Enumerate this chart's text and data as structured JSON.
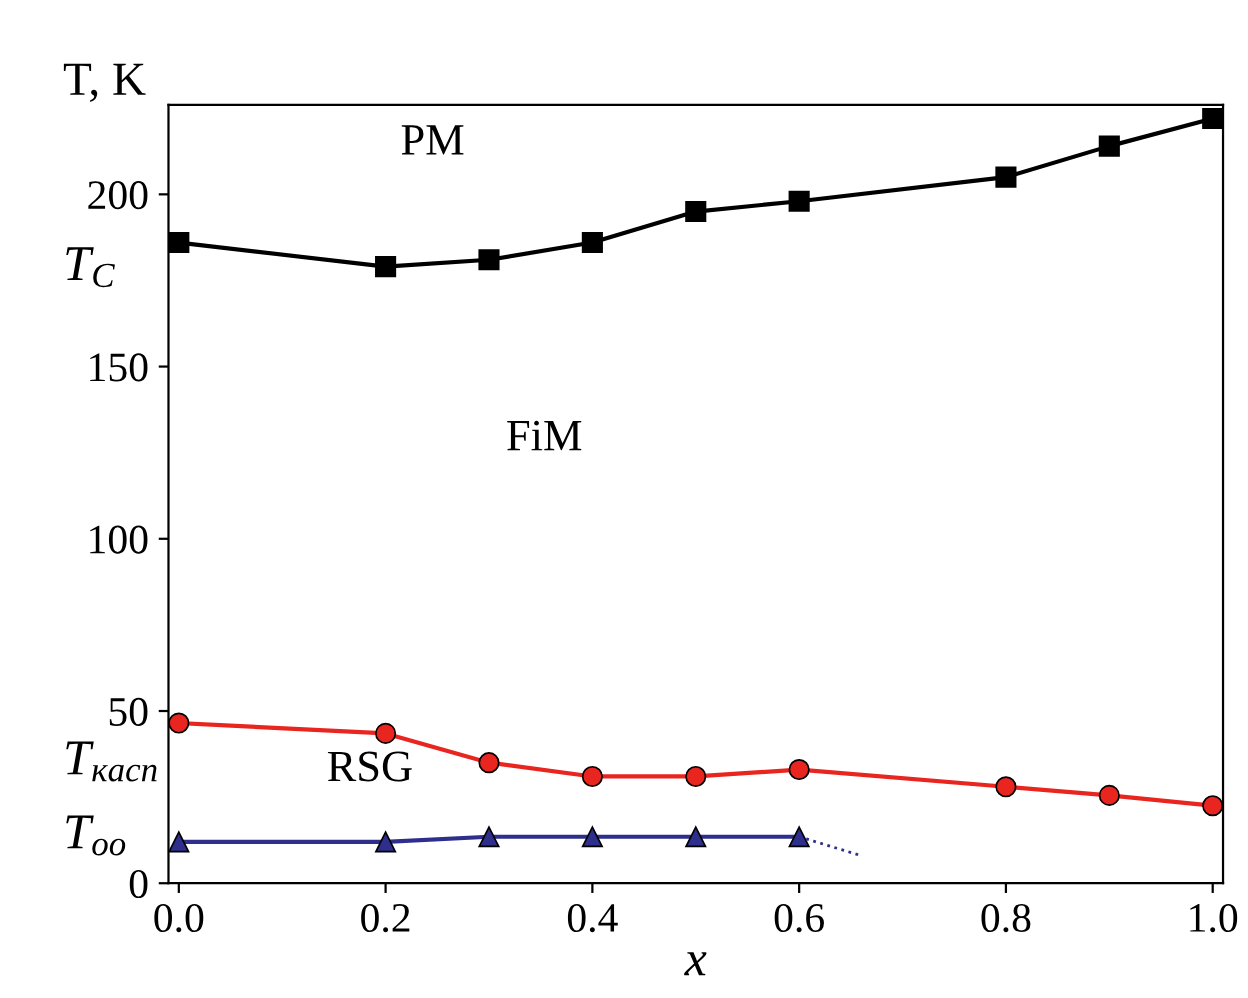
{
  "chart_data": {
    "type": "line",
    "xlabel": "x",
    "ylabel": "T, K",
    "xlim": [
      -0.01,
      1.01
    ],
    "ylim": [
      0,
      226
    ],
    "xticks": [
      {
        "value": 0,
        "label": "0.0"
      },
      {
        "value": 0.2,
        "label": "0.2"
      },
      {
        "value": 0.4,
        "label": "0.4"
      },
      {
        "value": 0.6,
        "label": "0.6"
      },
      {
        "value": 0.8,
        "label": "0.8"
      },
      {
        "value": 1,
        "label": "1.0"
      }
    ],
    "yticks": [
      0,
      50,
      100,
      150,
      200
    ],
    "series": [
      {
        "color": "#000000",
        "marker": "square",
        "x": [
          0,
          0.2,
          0.3,
          0.4,
          0.5,
          0.6,
          0.8,
          0.9,
          1.0
        ],
        "values": [
          186,
          179,
          181,
          186,
          195,
          198,
          205,
          214,
          222
        ]
      },
      {
        "color": "#e8251e",
        "marker": "circle",
        "x": [
          0,
          0.2,
          0.3,
          0.4,
          0.5,
          0.6,
          0.8,
          0.9,
          1.0
        ],
        "values": [
          46.5,
          43.5,
          35,
          31,
          31,
          33,
          28,
          25.5,
          22.5
        ]
      },
      {
        "color": "#2e2e8c",
        "marker": "triangle",
        "x": [
          0,
          0.2,
          0.3,
          0.4,
          0.5,
          0.6
        ],
        "values": [
          12,
          12,
          13.5,
          13.5,
          13.5,
          13.5
        ]
      },
      {
        "color": "#2e2e8c",
        "marker": "none",
        "line_style": "dotted",
        "x": [
          0.6,
          0.66
        ],
        "values": [
          13.5,
          8
        ]
      }
    ],
    "annotations": [
      "PM",
      "FiM",
      "RSG",
      "T$_{C}$",
      "T$_{касп}$",
      "T$_{оо}$"
    ]
  }
}
